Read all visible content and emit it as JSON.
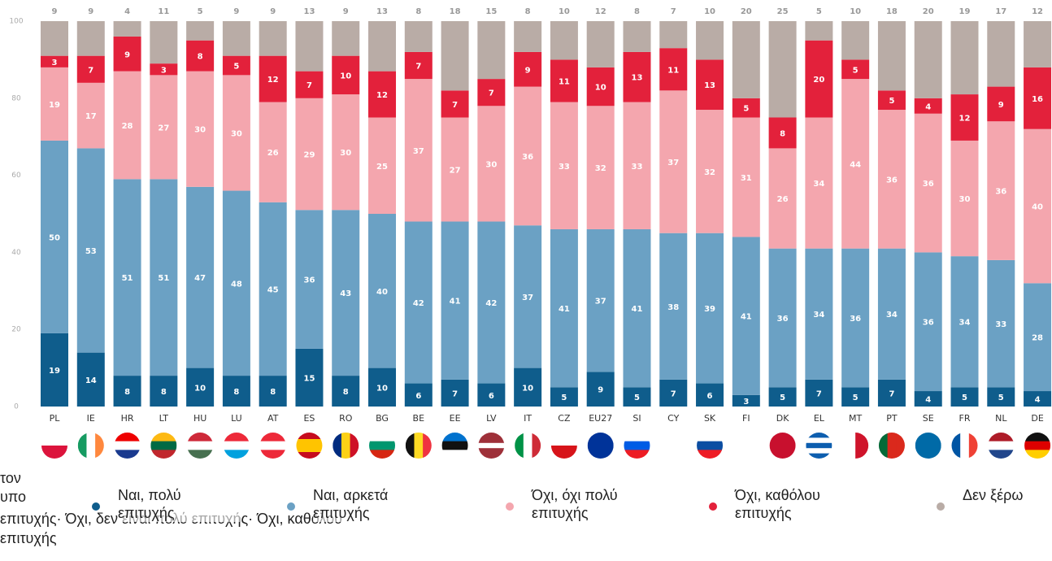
{
  "chart_data": {
    "type": "stacked_bar",
    "categories": [
      "PL",
      "IE",
      "HR",
      "LT",
      "HU",
      "LU",
      "AT",
      "ES",
      "RO",
      "BG",
      "BE",
      "EE",
      "LV",
      "IT",
      "CZ",
      "EU27",
      "SI",
      "CY",
      "SK",
      "FI",
      "DK",
      "EL",
      "MT",
      "PT",
      "SE",
      "FR",
      "NL",
      "DE"
    ],
    "series": [
      {
        "name": "Ναι, πολύ επιτυχής",
        "color": "#0f5d8c",
        "values": [
          19,
          14,
          8,
          8,
          10,
          8,
          8,
          15,
          8,
          10,
          6,
          7,
          6,
          10,
          5,
          9,
          5,
          7,
          6,
          3,
          5,
          7,
          5,
          7,
          4,
          5,
          5,
          4
        ]
      },
      {
        "name": "Ναι, αρκετά επιτυχής",
        "color": "#6ba1c4",
        "values": [
          50,
          53,
          51,
          51,
          47,
          48,
          45,
          36,
          43,
          40,
          42,
          41,
          42,
          37,
          41,
          37,
          41,
          38,
          39,
          41,
          36,
          34,
          36,
          34,
          36,
          34,
          33,
          28
        ]
      },
      {
        "name": "Όχι, όχι πολύ επιτυχής",
        "color": "#f4a6ae",
        "values": [
          19,
          17,
          28,
          27,
          30,
          30,
          26,
          29,
          30,
          25,
          37,
          27,
          30,
          36,
          33,
          32,
          33,
          37,
          32,
          31,
          26,
          34,
          44,
          36,
          36,
          30,
          36,
          40
        ]
      },
      {
        "name": "Όχι, καθόλου επιτυχής",
        "color": "#e3213b",
        "values": [
          3,
          7,
          9,
          3,
          8,
          5,
          12,
          7,
          10,
          12,
          7,
          7,
          7,
          9,
          11,
          10,
          13,
          11,
          13,
          5,
          8,
          20,
          5,
          5,
          4,
          12,
          9,
          16
        ]
      },
      {
        "name": "Δεν ξέρω",
        "color": "#b9aca6",
        "values": [
          9,
          9,
          4,
          11,
          5,
          9,
          9,
          13,
          9,
          13,
          8,
          18,
          15,
          8,
          10,
          12,
          8,
          7,
          10,
          20,
          25,
          5,
          10,
          18,
          20,
          19,
          17,
          12
        ]
      }
    ],
    "ylim": [
      0,
      100
    ],
    "yticks": [
      0,
      20,
      40,
      60,
      80,
      100
    ],
    "grid": false,
    "footnote": [
      "τον",
      "υπο",
      "επιτυχής· Όχι, δεν είναι πολύ επιτυχής· Όχι, καθόλου",
      "επιτυχής"
    ]
  }
}
